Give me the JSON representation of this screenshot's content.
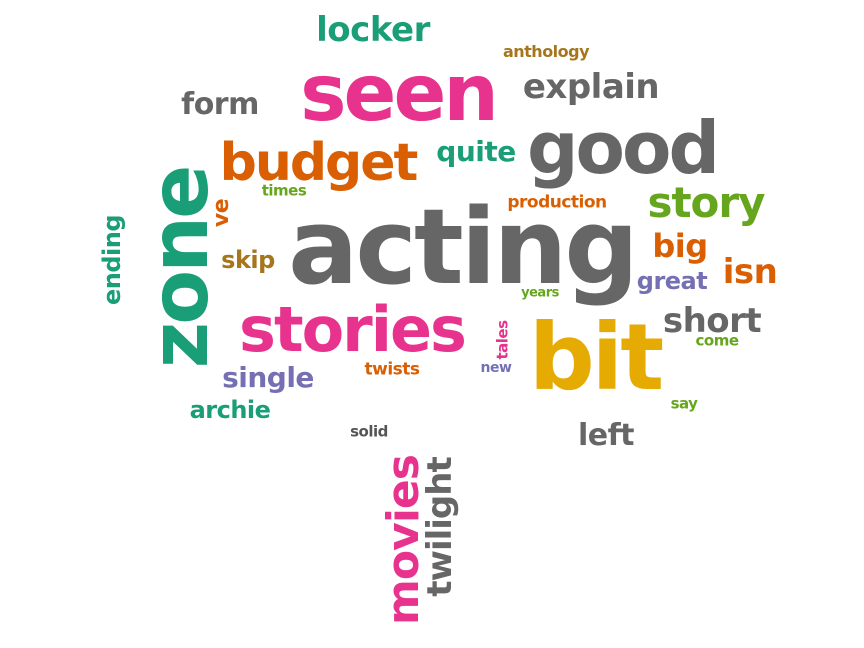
{
  "words": {
    "acting": "acting",
    "seen": "seen",
    "bit": "bit",
    "good": "good",
    "zone": "zone",
    "stories": "stories",
    "budget": "budget",
    "story": "story",
    "movies": "movies",
    "twilight": "twilight",
    "explain": "explain",
    "locker": "locker",
    "short": "short",
    "isn": "isn",
    "big": "big",
    "form": "form",
    "left": "left",
    "quite": "quite",
    "single": "single",
    "great": "great",
    "archie": "archie",
    "skip": "skip",
    "ending": "ending",
    "ve": "ve",
    "production": "production",
    "twists": "twists",
    "anthology": "anthology",
    "times": "times",
    "tales": "tales",
    "new": "new",
    "come": "come",
    "say": "say",
    "years": "years",
    "solid": "solid"
  },
  "palette": {
    "pink": "#e8338e",
    "gray": "#666666",
    "teal": "#1a9e77",
    "orange": "#d95f02",
    "green": "#66a61e",
    "gold": "#e6ab02",
    "purple": "#7570b3",
    "brown": "#a6761d",
    "dark": "#555555"
  }
}
